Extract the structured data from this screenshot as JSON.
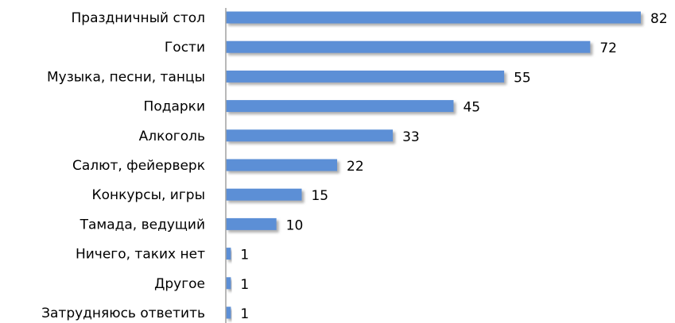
{
  "chart_data": {
    "type": "bar",
    "orientation": "horizontal",
    "title": "",
    "xlabel": "",
    "ylabel": "",
    "categories": [
      "Праздничный стол",
      "Гости",
      "Музыка, песни, танцы",
      "Подарки",
      "Алкоголь",
      "Салют, фейерверк",
      "Конкурсы, игры",
      "Тамада, ведущий",
      "Ничего, таких нет",
      "Другое",
      "Затрудняюсь ответить"
    ],
    "values": [
      82,
      72,
      55,
      45,
      33,
      22,
      15,
      10,
      1,
      1,
      1
    ],
    "xlim": [
      0,
      82
    ],
    "grid": false,
    "legend": "none",
    "colors": {
      "bar": "#5b8fd6",
      "bar_shadow": "#b8b8b8",
      "axis": "#a0a0a0",
      "text": "#000000"
    }
  }
}
